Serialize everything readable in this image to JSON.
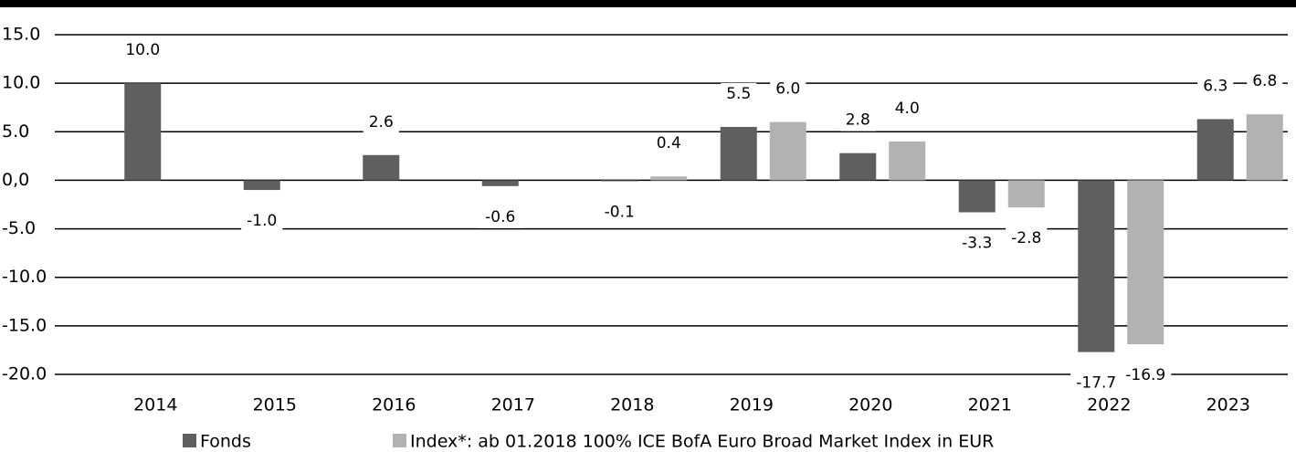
{
  "chart_data": {
    "type": "bar",
    "categories": [
      "2014",
      "2015",
      "2016",
      "2017",
      "2018",
      "2019",
      "2020",
      "2021",
      "2022",
      "2023"
    ],
    "series": [
      {
        "name": "Fonds",
        "color": "#5f5f5f",
        "values": [
          10.0,
          -1.0,
          2.6,
          -0.6,
          -0.1,
          5.5,
          2.8,
          -3.3,
          -17.7,
          6.3
        ],
        "value_labels": [
          "10.0",
          "-1.0",
          "2.6",
          "-0.6",
          "-0.1",
          "5.5",
          "2.8",
          "-3.3",
          "-17.7",
          "6.3"
        ]
      },
      {
        "name": "Index*: ab 01.2018 100% ICE BofA Euro Broad Market Index in EUR",
        "color": "#b2b2b2",
        "values": [
          null,
          null,
          null,
          null,
          0.4,
          6.0,
          4.0,
          -2.8,
          -16.9,
          6.8
        ],
        "value_labels": [
          null,
          null,
          null,
          null,
          "0.4",
          "6.0",
          "4.0",
          "-2.8",
          "-16.9",
          "6.8"
        ]
      }
    ],
    "ylim": [
      -20,
      15
    ],
    "yticks": [
      {
        "value": 15,
        "label": "15.0"
      },
      {
        "value": 10,
        "label": "10.0"
      },
      {
        "value": 5,
        "label": "5.0"
      },
      {
        "value": 0,
        "label": "0,0"
      },
      {
        "value": -5,
        "label": "-5.0"
      },
      {
        "value": -10,
        "label": "-10.0"
      },
      {
        "value": -15,
        "label": "-15.0"
      },
      {
        "value": -20,
        "label": "-20.0"
      }
    ],
    "grid": true
  }
}
